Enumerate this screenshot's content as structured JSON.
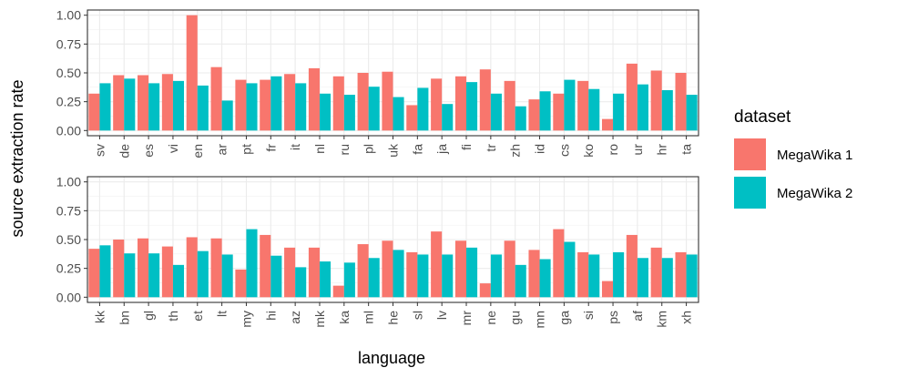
{
  "chart_data": {
    "type": "bar",
    "xlabel": "language",
    "ylabel": "source extraction rate",
    "ylim": [
      0,
      1
    ],
    "yticks": [
      "0.00",
      "0.25",
      "0.50",
      "0.75",
      "1.00"
    ],
    "grid": true,
    "legend": {
      "title": "dataset",
      "placement": "right",
      "entries": [
        "MegaWika 1",
        "MegaWika 2"
      ]
    },
    "colors": {
      "MegaWika 1": "#F8766D",
      "MegaWika 2": "#00BFC4"
    },
    "panels": [
      {
        "categories": [
          "sv",
          "de",
          "es",
          "vi",
          "en",
          "ar",
          "pt",
          "fr",
          "it",
          "nl",
          "ru",
          "pl",
          "uk",
          "fa",
          "ja",
          "fi",
          "tr",
          "zh",
          "id",
          "cs",
          "ko",
          "ro",
          "ur",
          "hr",
          "ta"
        ],
        "series": [
          {
            "name": "MegaWika 1",
            "values": [
              0.32,
              0.48,
              0.48,
              0.49,
              1.0,
              0.55,
              0.44,
              0.44,
              0.49,
              0.54,
              0.47,
              0.5,
              0.51,
              0.22,
              0.45,
              0.47,
              0.53,
              0.43,
              0.27,
              0.32,
              0.43,
              0.1,
              0.58,
              0.52,
              0.5
            ]
          },
          {
            "name": "MegaWika 2",
            "values": [
              0.41,
              0.45,
              0.41,
              0.43,
              0.39,
              0.26,
              0.41,
              0.47,
              0.41,
              0.32,
              0.31,
              0.38,
              0.29,
              0.37,
              0.23,
              0.42,
              0.32,
              0.21,
              0.34,
              0.44,
              0.36,
              0.32,
              0.4,
              0.35,
              0.31
            ]
          }
        ]
      },
      {
        "categories": [
          "kk",
          "bn",
          "gl",
          "th",
          "et",
          "lt",
          "my",
          "hi",
          "az",
          "mk",
          "ka",
          "ml",
          "he",
          "sl",
          "lv",
          "mr",
          "ne",
          "gu",
          "mn",
          "ga",
          "si",
          "ps",
          "af",
          "km",
          "xh"
        ],
        "series": [
          {
            "name": "MegaWika 1",
            "values": [
              0.42,
              0.5,
              0.51,
              0.44,
              0.52,
              0.51,
              0.24,
              0.54,
              0.43,
              0.43,
              0.1,
              0.46,
              0.49,
              0.39,
              0.57,
              0.49,
              0.12,
              0.49,
              0.41,
              0.59,
              0.39,
              0.14,
              0.54,
              0.43,
              0.39
            ]
          },
          {
            "name": "MegaWika 2",
            "values": [
              0.45,
              0.38,
              0.38,
              0.28,
              0.4,
              0.37,
              0.59,
              0.36,
              0.26,
              0.31,
              0.3,
              0.34,
              0.41,
              0.37,
              0.37,
              0.43,
              0.37,
              0.28,
              0.33,
              0.48,
              0.37,
              0.39,
              0.34,
              0.34,
              0.37
            ]
          }
        ]
      }
    ]
  }
}
